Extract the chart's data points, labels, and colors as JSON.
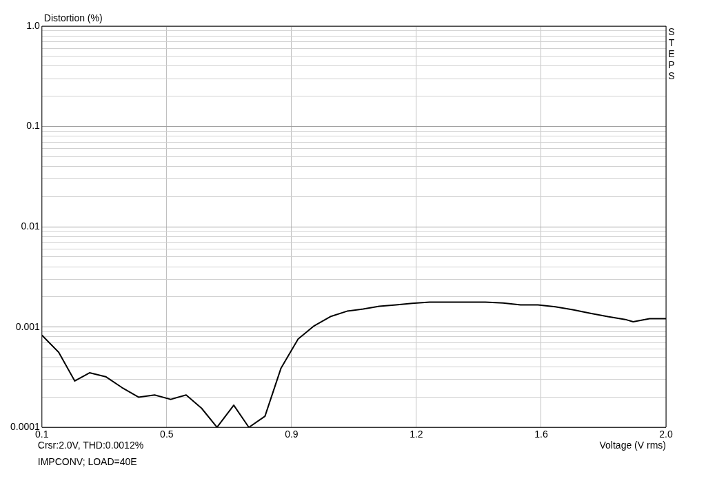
{
  "chart_data": {
    "type": "line",
    "ylabel": "Distortion (%)",
    "xlabel": "Voltage (V rms)",
    "annotations": [
      "STEPS",
      "Crsr:2.0V, THD:0.0012%",
      "IMPCONV; LOAD=40E"
    ],
    "log": "y",
    "grid": true,
    "legend": false,
    "marker": "none",
    "line_style": "solid",
    "xlim": [
      0.1,
      2.0
    ],
    "xticks": [
      0.1,
      {
        "value": 0.48,
        "label": "0.5"
      },
      {
        "value": 0.86,
        "label": "0.9"
      },
      {
        "value": 1.24,
        "label": "1.2"
      },
      {
        "value": 1.62,
        "label": "1.6"
      },
      {
        "value": 2.0,
        "label": "2.0"
      }
    ],
    "ylim": [
      0.0001,
      1
    ],
    "yticks": [
      0.0001,
      {
        "value": 0.0002,
        "label": null
      },
      {
        "value": 0.0003,
        "label": null
      },
      {
        "value": 0.0004,
        "label": null
      },
      {
        "value": 0.0005,
        "label": null
      },
      {
        "value": 0.0006,
        "label": null
      },
      {
        "value": 0.0007,
        "label": null
      },
      {
        "value": 0.0008,
        "label": null
      },
      {
        "value": 0.0009,
        "label": null
      },
      0.001,
      {
        "value": 0.002,
        "label": null
      },
      {
        "value": 0.003,
        "label": null
      },
      {
        "value": 0.004,
        "label": null
      },
      {
        "value": 0.005,
        "label": null
      },
      {
        "value": 0.006,
        "label": null
      },
      {
        "value": 0.007,
        "label": null
      },
      {
        "value": 0.008,
        "label": null
      },
      {
        "value": 0.009,
        "label": null
      },
      0.01,
      {
        "value": 0.02,
        "label": null
      },
      {
        "value": 0.03,
        "label": null
      },
      {
        "value": 0.04,
        "label": null
      },
      {
        "value": 0.05,
        "label": null
      },
      {
        "value": 0.06,
        "label": null
      },
      {
        "value": 0.07,
        "label": null
      },
      {
        "value": 0.08,
        "label": null
      },
      {
        "value": 0.09,
        "label": null
      },
      0.1,
      {
        "value": 0.2,
        "label": null
      },
      {
        "value": 0.3,
        "label": null
      },
      {
        "value": 0.4,
        "label": null
      },
      {
        "value": 0.5,
        "label": null
      },
      {
        "value": 0.6,
        "label": null
      },
      {
        "value": 0.7,
        "label": null
      },
      {
        "value": 0.8,
        "label": null
      },
      {
        "value": 0.9,
        "label": null
      },
      {
        "value": 1,
        "label": "1.0"
      }
    ],
    "series": [
      {
        "color": "#000000",
        "x": [
          0.1,
          0.151,
          0.2,
          0.245,
          0.294,
          0.343,
          0.394,
          0.443,
          0.492,
          0.539,
          0.586,
          0.633,
          0.684,
          0.73,
          0.779,
          0.828,
          0.88,
          0.929,
          0.978,
          1.029,
          1.078,
          1.127,
          1.178,
          1.227,
          1.28,
          1.365,
          1.45,
          1.504,
          1.557,
          1.61,
          1.663,
          1.716,
          1.77,
          1.823,
          1.876,
          1.9,
          1.95,
          2.0
        ],
        "values": [
          0.00083,
          0.00056,
          0.00029,
          0.00035,
          0.00032,
          0.00025,
          0.0002,
          0.00021,
          0.00019,
          0.00021,
          0.000155,
          0.0001,
          0.000166,
          0.0001,
          0.000129,
          0.00039,
          0.00076,
          0.00103,
          0.00127,
          0.00144,
          0.00151,
          0.00161,
          0.00166,
          0.00172,
          0.00177,
          0.00177,
          0.00177,
          0.00174,
          0.00166,
          0.00166,
          0.00159,
          0.00149,
          0.00137,
          0.00127,
          0.00119,
          0.00113,
          0.00121,
          0.00121
        ]
      }
    ]
  }
}
